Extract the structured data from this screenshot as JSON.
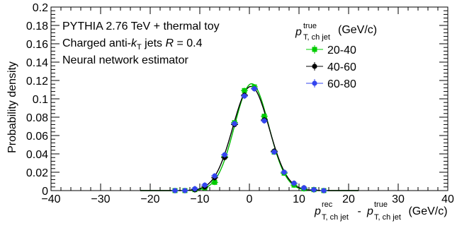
{
  "chart_data": {
    "type": "scatter",
    "xlim": [
      -40,
      40
    ],
    "ylim": [
      0,
      0.2
    ],
    "x_ticks": [
      "−40",
      "−30",
      "−20",
      "−10",
      "0",
      "10",
      "20",
      "30",
      "40"
    ],
    "x_tick_values": [
      -40,
      -30,
      -20,
      -10,
      0,
      10,
      20,
      30,
      40
    ],
    "y_ticks": [
      "0",
      "0.02",
      "0.04",
      "0.06",
      "0.08",
      "0.1",
      "0.12",
      "0.14",
      "0.16",
      "0.18",
      "0.2"
    ],
    "y_tick_values": [
      0,
      0.02,
      0.04,
      0.06,
      0.08,
      0.1,
      0.12,
      0.14,
      0.16,
      0.18,
      0.2
    ],
    "ylabel": "Probability density",
    "xlabel": {
      "p": "p",
      "sup1": "rec",
      "sub1": "T, ch jet",
      "dash": " - ",
      "sup2": "true",
      "sub2": "T, ch jet",
      "unit": " (GeV/c)"
    },
    "annotations": {
      "line1": "PYTHIA 2.76 TeV + thermal toy",
      "line2_a": "Charged anti-",
      "line2_k": "k",
      "line2_sub": "T",
      "line2_b": " jets  ",
      "line2_R": "R",
      "line2_c": " = 0.4",
      "line3": "Neural network estimator"
    },
    "legend": {
      "title_p": "p",
      "title_sup": "true",
      "title_sub": "T, ch jet",
      "title_unit": " (GeV/c)",
      "placement": "top-right"
    },
    "x": [
      -15,
      -13,
      -11,
      -9,
      -7,
      -5,
      -3,
      -1,
      1,
      3,
      5,
      7,
      9,
      11,
      13,
      15
    ],
    "series": [
      {
        "name": "20-40",
        "color": "#00cc00",
        "marker": "square",
        "values": [
          0,
          0,
          0.001,
          0.003,
          0.009,
          0.037,
          0.074,
          0.109,
          0.113,
          0.081,
          0.042,
          0.019,
          0.006,
          0.002,
          0.001,
          0
        ]
      },
      {
        "name": "40-60",
        "color": "#000000",
        "marker": "circle",
        "values": [
          0,
          0,
          0.001,
          0.004,
          0.014,
          0.036,
          0.072,
          0.104,
          0.111,
          0.077,
          0.043,
          0.02,
          0.008,
          0.003,
          0.001,
          0
        ]
      },
      {
        "name": "60-80",
        "color": "#3344ee",
        "marker": "circle",
        "values": [
          0,
          0,
          0.002,
          0.006,
          0.016,
          0.039,
          0.073,
          0.103,
          0.111,
          0.076,
          0.042,
          0.02,
          0.008,
          0.003,
          0.001,
          0
        ]
      }
    ],
    "fits": [
      {
        "color": "#00bb00",
        "amplitude": 0.1165,
        "mean": 0.45,
        "sigma": 3.45
      },
      {
        "color": "#000000",
        "amplitude": 0.1135,
        "mean": 0.3,
        "sigma": 3.65
      }
    ]
  }
}
